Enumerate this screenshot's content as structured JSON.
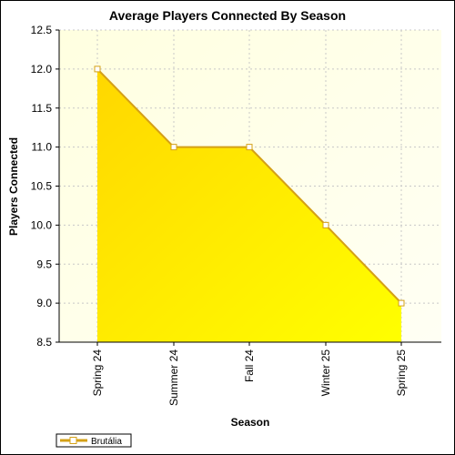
{
  "chart_data": {
    "type": "area",
    "title": "Average Players Connected By Season",
    "xlabel": "Season",
    "ylabel": "Players Connected",
    "categories": [
      "Spring 24",
      "Summer 24",
      "Fall 24",
      "Winter 25",
      "Spring 25"
    ],
    "series": [
      {
        "name": "Brutália",
        "values": [
          12.0,
          11.0,
          11.0,
          10.0,
          9.0
        ]
      }
    ],
    "ylim": [
      8.5,
      12.5
    ],
    "yticks": [
      8.5,
      9.0,
      9.5,
      10.0,
      10.5,
      11.0,
      11.5,
      12.0,
      12.5
    ],
    "ytick_labels": [
      "8.5",
      "9.0",
      "9.5",
      "10.0",
      "10.5",
      "11.0",
      "11.5",
      "12.0",
      "12.5"
    ],
    "grid": true,
    "legend": "bottom-left",
    "colors": {
      "area_start": "#ffd700",
      "area_end": "#ffff00",
      "line": "#d4a017",
      "plot_bg_start": "#ffffe0",
      "plot_bg_end": "#fffff4",
      "marker_fill": "#ffffff",
      "grid": "#c8c8c8"
    }
  }
}
